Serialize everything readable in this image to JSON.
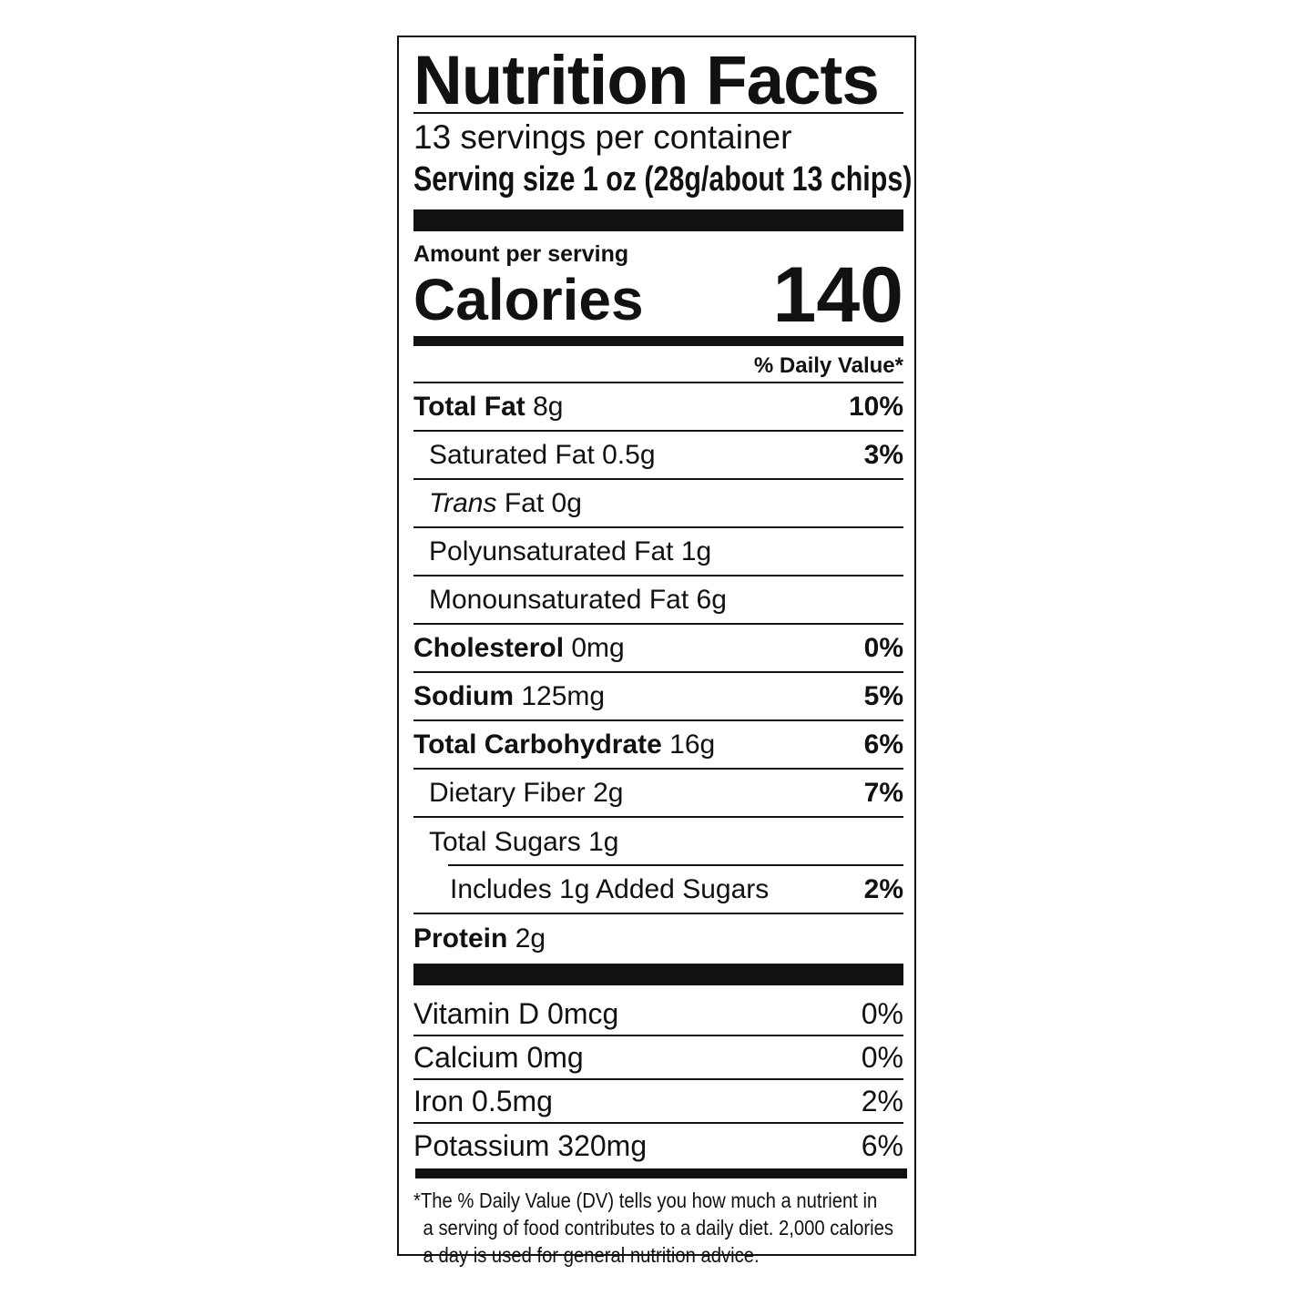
{
  "title": "Nutrition Facts",
  "servings_per_container": "13 servings per container",
  "serving_size": "Serving size 1 oz (28g/about 13 chips)",
  "amount_per_serving": "Amount per serving",
  "calories": {
    "label": "Calories",
    "value": "140"
  },
  "daily_value_header": "% Daily Value*",
  "nutrients": [
    {
      "name": "Total Fat",
      "amount": "8g",
      "dv": "10%"
    },
    {
      "name": "Saturated Fat",
      "amount": "0.5g",
      "dv": "3%"
    },
    {
      "name": "Trans",
      "name_rest": "Fat",
      "amount": "0g",
      "dv": ""
    },
    {
      "name": "Polyunsaturated Fat",
      "amount": "1g",
      "dv": ""
    },
    {
      "name": "Monounsaturated Fat",
      "amount": "6g",
      "dv": ""
    },
    {
      "name": "Cholesterol",
      "amount": "0mg",
      "dv": "0%"
    },
    {
      "name": "Sodium",
      "amount": "125mg",
      "dv": "5%"
    },
    {
      "name": "Total Carbohydrate",
      "amount": "16g",
      "dv": "6%"
    },
    {
      "name": "Dietary Fiber",
      "amount": "2g",
      "dv": "7%"
    },
    {
      "name": "Total Sugars",
      "amount": "1g",
      "dv": ""
    },
    {
      "name": "Includes 1g Added Sugars",
      "amount": "",
      "dv": "2%"
    },
    {
      "name": "Protein",
      "amount": "2g",
      "dv": ""
    }
  ],
  "vitamins": [
    {
      "label": "Vitamin D 0mcg",
      "dv": "0%"
    },
    {
      "label": "Calcium 0mg",
      "dv": "0%"
    },
    {
      "label": "Iron 0.5mg",
      "dv": "2%"
    },
    {
      "label": "Potassium 320mg",
      "dv": "6%"
    }
  ],
  "footnote": [
    "*The % Daily Value (DV) tells you how much a nutrient in",
    "a serving of food contributes to a daily diet. 2,000 calories",
    "a day is used for general nutrition advice."
  ]
}
